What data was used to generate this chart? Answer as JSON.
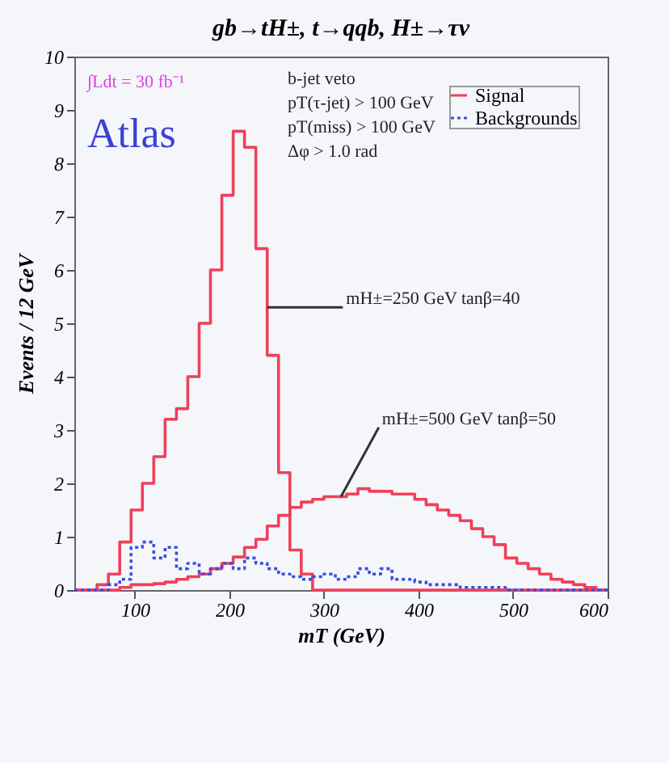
{
  "chart_data": {
    "type": "histogram",
    "title": "gb→tH±, t→qqb, H±→τν",
    "xlabel": "mT (GeV)",
    "ylabel": "Events / 12 GeV",
    "bins": [
      36,
      48,
      60,
      72,
      84,
      96,
      108,
      120,
      132,
      144,
      156,
      168,
      180,
      192,
      204,
      216,
      228,
      240,
      252,
      264,
      276,
      288,
      300,
      312,
      324,
      336,
      348,
      360,
      372,
      384,
      396,
      408,
      420,
      432,
      444,
      456,
      468,
      480,
      492,
      504,
      516,
      528,
      540,
      552,
      564,
      576,
      588,
      600
    ],
    "series": [
      {
        "name": "Signal",
        "color": "#f0405a",
        "line_style": "solid",
        "values": [
          0,
          0,
          0.1,
          0.3,
          0.9,
          1.5,
          2.0,
          2.5,
          3.2,
          3.4,
          4.0,
          5.0,
          6.0,
          7.4,
          8.6,
          8.3,
          6.4,
          4.4,
          2.2,
          0.75,
          0.3,
          0,
          0,
          0,
          0,
          0,
          0,
          0,
          0,
          0,
          0,
          0,
          0,
          0,
          0,
          0,
          0,
          0,
          0,
          0,
          0,
          0,
          0,
          0,
          0,
          0,
          0
        ]
      },
      {
        "color": "#f0405a",
        "line_style": "solid",
        "values": [
          0,
          0,
          0,
          0,
          0.05,
          0.1,
          0.1,
          0.12,
          0.15,
          0.2,
          0.25,
          0.3,
          0.4,
          0.5,
          0.62,
          0.8,
          0.95,
          1.2,
          1.4,
          1.55,
          1.65,
          1.7,
          1.75,
          1.75,
          1.8,
          1.9,
          1.85,
          1.85,
          1.8,
          1.8,
          1.7,
          1.6,
          1.5,
          1.4,
          1.3,
          1.15,
          1.0,
          0.85,
          0.6,
          0.5,
          0.4,
          0.3,
          0.2,
          0.15,
          0.1,
          0.05,
          0
        ]
      },
      {
        "name": "Backgrounds",
        "color": "#3a4ee0",
        "line_style": "dotted",
        "values": [
          0,
          0,
          0,
          0.1,
          0.2,
          0.8,
          0.9,
          0.6,
          0.8,
          0.4,
          0.5,
          0.3,
          0.4,
          0.5,
          0.4,
          0.6,
          0.5,
          0.4,
          0.3,
          0.25,
          0.2,
          0.25,
          0.3,
          0.2,
          0.25,
          0.4,
          0.3,
          0.4,
          0.2,
          0.2,
          0.15,
          0.1,
          0.1,
          0.1,
          0.05,
          0.05,
          0.05,
          0.05,
          0,
          0,
          0,
          0,
          0,
          0,
          0,
          0,
          0
        ]
      }
    ],
    "xlim": [
      36,
      600
    ],
    "xticks": [
      100,
      200,
      300,
      400,
      500,
      600
    ],
    "ylim": [
      0,
      10
    ],
    "yticks": [
      0,
      1,
      2,
      3,
      4,
      5,
      6,
      7,
      8,
      9,
      10
    ],
    "legend": "top right",
    "annotations": [
      "b-jet veto",
      "pT(τ-jet) > 100 GeV",
      "pT(miss) > 100 GeV",
      "Δφ > 1.0 rad",
      "∫Ldt = 30 fb⁻¹",
      "Atlas",
      {
        "text": "mH±=250 GeV tanβ=40",
        "x": 240,
        "y": 5.3
      },
      {
        "text": "mH±=500 GeV tanβ=50",
        "x": 318,
        "y": 1.75
      }
    ]
  }
}
